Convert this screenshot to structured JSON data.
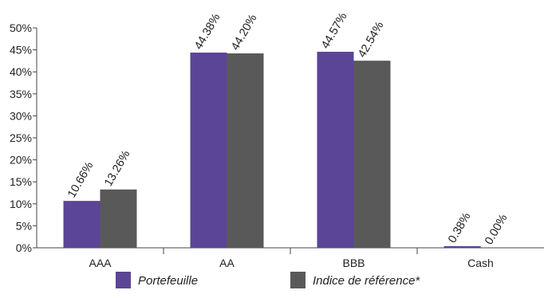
{
  "chart_data": {
    "type": "bar",
    "categories": [
      "AAA",
      "AA",
      "BBB",
      "Cash"
    ],
    "series": [
      {
        "name": "Portefeuille",
        "values": [
          10.66,
          44.38,
          44.57,
          0.38
        ],
        "labels": [
          "10.66%",
          "44.38%",
          "44.57%",
          "0.38%"
        ],
        "color": "#5a4597"
      },
      {
        "name": "Indice de référence*",
        "values": [
          13.26,
          44.2,
          42.54,
          0.0
        ],
        "labels": [
          "13.26%",
          "44.20%",
          "42.54%",
          "0.00%"
        ],
        "color": "#595959"
      }
    ],
    "ylim": [
      0,
      50
    ],
    "yticks": [
      "0%",
      "5%",
      "10%",
      "15%",
      "20%",
      "25%",
      "30%",
      "35%",
      "40%",
      "45%",
      "50%"
    ],
    "grid": false,
    "legend": "bottom",
    "xlabel": "",
    "ylabel": ""
  }
}
